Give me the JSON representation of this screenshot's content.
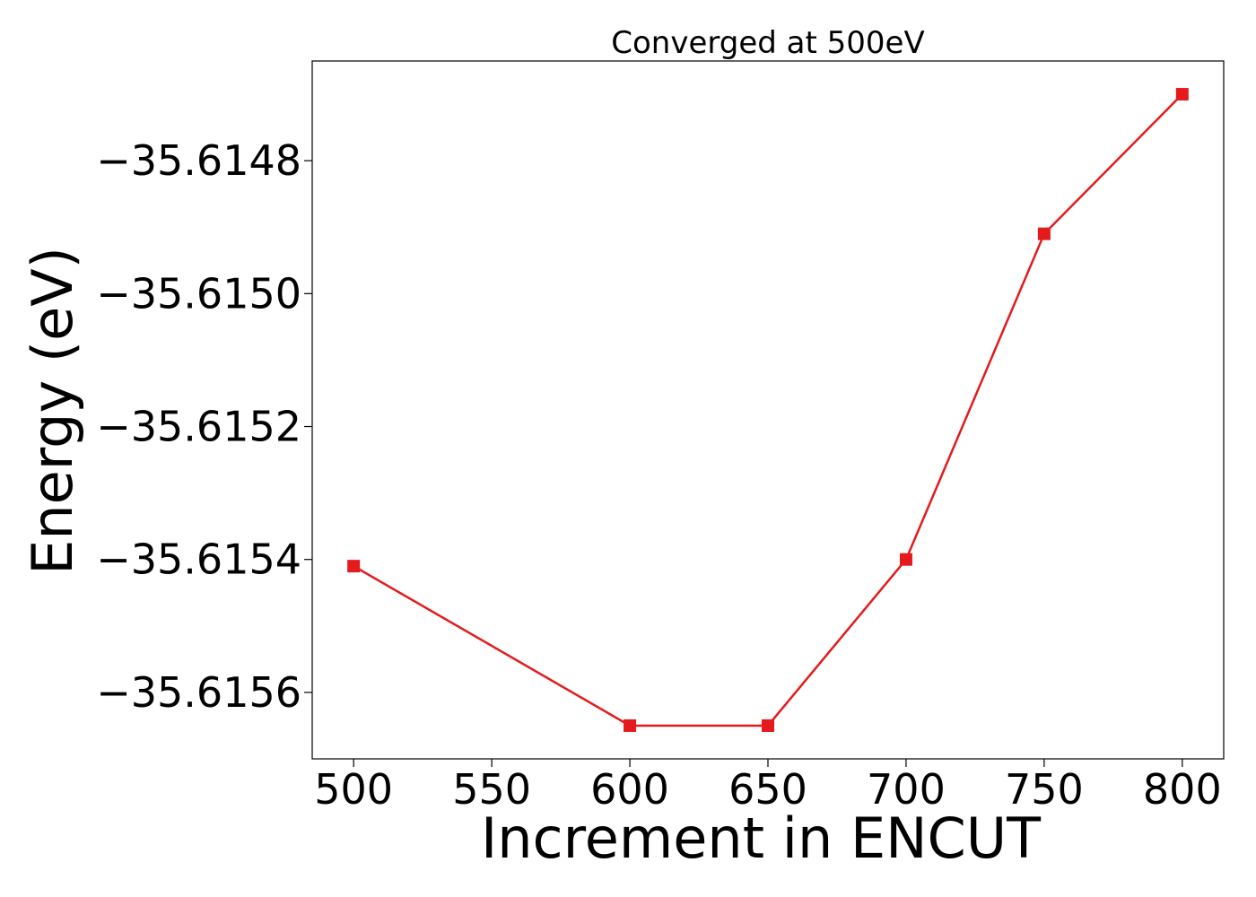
{
  "chart_data": {
    "type": "line",
    "title": "Converged at 500eV",
    "xlabel": "Increment in ENCUT",
    "ylabel": "Energy (eV)",
    "x": [
      500,
      600,
      650,
      700,
      750,
      800
    ],
    "xlim": [
      485,
      815
    ],
    "ylim": [
      -35.6157,
      -35.61465
    ],
    "xticks": [
      500,
      550,
      600,
      650,
      700,
      750,
      800
    ],
    "yticks": [
      -35.6148,
      -35.615,
      -35.6152,
      -35.6154,
      -35.6156
    ],
    "ytick_labels": [
      "−35.6148",
      "−35.6150",
      "−35.6152",
      "−35.6154",
      "−35.6156"
    ],
    "series": [
      {
        "values": [
          -35.61541,
          -35.61565,
          -35.61565,
          -35.6154,
          -35.61491,
          -35.6147
        ],
        "color": "#e41a1c",
        "marker": "square"
      }
    ],
    "grid": false,
    "legend": "none"
  }
}
